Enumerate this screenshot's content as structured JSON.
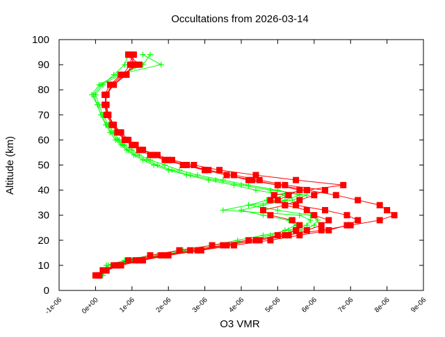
{
  "chart_data": {
    "type": "line",
    "title": "Occultations from 2026-03-14",
    "xlabel": "O3 VMR",
    "ylabel": "Altitude (km)",
    "xlim": [
      -1e-06,
      9e-06
    ],
    "ylim": [
      0,
      100
    ],
    "x_ticks": [
      "-1e-06",
      "0e+00",
      "1e-06",
      "2e-06",
      "3e-06",
      "4e-06",
      "5e-06",
      "6e-06",
      "7e-06",
      "8e-06",
      "9e-06"
    ],
    "y_ticks": [
      "0",
      "10",
      "20",
      "30",
      "40",
      "50",
      "60",
      "70",
      "80",
      "90",
      "100"
    ],
    "grid": false,
    "legend": "none",
    "colors": {
      "red_series": "#ff0000",
      "green_series": "#00ff00"
    },
    "altitudes": [
      6,
      8,
      10,
      12,
      14,
      16,
      18,
      20,
      22,
      24,
      26,
      28,
      30,
      32,
      34,
      36,
      38,
      40,
      42,
      44,
      46,
      48,
      50,
      52,
      54,
      56,
      58,
      60,
      63,
      66,
      70,
      74,
      78,
      82,
      86,
      90,
      94
    ],
    "series": [
      {
        "color": "#00ff00",
        "marker": "plus",
        "vmr": [
          2e-07,
          2.5e-07,
          3e-07,
          9e-07,
          1.7e-06,
          2.6e-06,
          3.5e-06,
          4.2e-06,
          4.8e-06,
          5.2e-06,
          5.5e-06,
          5.3e-06,
          4.6e-06,
          4e-06,
          4.6e-06,
          5.2e-06,
          5.6e-06,
          5e-06,
          4.2e-06,
          3.5e-06,
          2.8e-06,
          2.3e-06,
          1.9e-06,
          1.5e-06,
          1.2e-06,
          1e-06,
          8e-07,
          6.5e-07,
          5e-07,
          3.5e-07,
          2e-07,
          1e-07,
          0,
          2e-07,
          5e-07,
          8e-07,
          9e-07
        ]
      },
      {
        "color": "#00ff00",
        "marker": "plus",
        "vmr": [
          2e-07,
          2.5e-07,
          3e-07,
          8e-07,
          1.5e-06,
          2.4e-06,
          3.2e-06,
          3.9e-06,
          4.6e-06,
          5.3e-06,
          5.8e-06,
          5.9e-06,
          5.6e-06,
          3.5e-06,
          4.2e-06,
          5.4e-06,
          5.8e-06,
          4.8e-06,
          4e-06,
          3.3e-06,
          2.6e-06,
          2.1e-06,
          1.7e-06,
          1.4e-06,
          1.1e-06,
          9e-07,
          7.5e-07,
          6e-07,
          4.5e-07,
          3e-07,
          1.5e-07,
          5e-08,
          -1e-07,
          1e-07,
          6e-07,
          1.8e-06,
          1.3e-06
        ]
      },
      {
        "color": "#00ff00",
        "marker": "plus",
        "vmr": [
          2e-07,
          2.5e-07,
          3.5e-07,
          1e-06,
          1.9e-06,
          2.8e-06,
          3.6e-06,
          4.4e-06,
          5e-06,
          5.6e-06,
          6e-06,
          6.1e-06,
          5.9e-06,
          5e-06,
          4.2e-06,
          4.7e-06,
          5.2e-06,
          4.4e-06,
          3.8e-06,
          3.1e-06,
          2.5e-06,
          2e-06,
          1.6e-06,
          1.3e-06,
          1.05e-06,
          8.5e-07,
          7e-07,
          5.5e-07,
          4e-07,
          2.8e-07,
          1.5e-07,
          5e-08,
          -5e-08,
          1.5e-07,
          7e-07,
          1.3e-06,
          1.5e-06
        ]
      },
      {
        "color": "#ff0000",
        "marker": "square",
        "vmr": [
          1e-07,
          2e-07,
          5e-07,
          9e-07,
          1.5e-06,
          2.3e-06,
          3.2e-06,
          4.2e-06,
          5.2e-06,
          6.2e-06,
          7e-06,
          7.8e-06,
          8.2e-06,
          8e-06,
          7.8e-06,
          7.2e-06,
          6.6e-06,
          5.8e-06,
          5e-06,
          4.2e-06,
          3.6e-06,
          3e-06,
          2.5e-06,
          2e-06,
          1.6e-06,
          1.3e-06,
          1e-06,
          8.5e-07,
          6.5e-07,
          5e-07,
          3.5e-07,
          2.8e-07,
          3e-07,
          4.5e-07,
          7.5e-07,
          9.5e-07,
          1e-06
        ]
      },
      {
        "color": "#ff0000",
        "marker": "square",
        "vmr": [
          0,
          2e-07,
          6e-07,
          1.1e-06,
          1.8e-06,
          2.6e-06,
          3.5e-06,
          4.5e-06,
          5.3e-06,
          5.8e-06,
          6.2e-06,
          6.4e-06,
          6e-06,
          5.8e-06,
          5.2e-06,
          5e-06,
          5.3e-06,
          5.6e-06,
          5e-06,
          4.3e-06,
          3.6e-06,
          3e-06,
          2.4e-06,
          1.9e-06,
          1.5e-06,
          1.2e-06,
          1e-06,
          8e-07,
          6e-07,
          4.5e-07,
          3e-07,
          2.5e-07,
          3e-07,
          5e-07,
          8e-07,
          1.1e-06,
          9e-07
        ]
      },
      {
        "color": "#ff0000",
        "marker": "square",
        "vmr": [
          5e-08,
          3e-07,
          7e-07,
          1.3e-06,
          2e-06,
          2.9e-06,
          3.8e-06,
          4.8e-06,
          5.6e-06,
          6.4e-06,
          6.9e-06,
          7.2e-06,
          6.9e-06,
          6.3e-06,
          5.5e-06,
          4.8e-06,
          4.9e-06,
          5.8e-06,
          6.8e-06,
          5.5e-06,
          4.4e-06,
          3.4e-06,
          2.7e-06,
          2.1e-06,
          1.7e-06,
          1.3e-06,
          1.1e-06,
          9e-07,
          7e-07,
          5e-07,
          3.5e-07,
          3e-07,
          2.5e-07,
          4e-07,
          7e-07,
          1.2e-06,
          9e-07
        ]
      },
      {
        "color": "#ff0000",
        "marker": "square",
        "vmr": [
          1e-07,
          3e-07,
          6e-07,
          1.2e-06,
          1.9e-06,
          2.8e-06,
          3.6e-06,
          4.4e-06,
          5e-06,
          5.5e-06,
          5.6e-06,
          5.4e-06,
          4.8e-06,
          4.6e-06,
          5.2e-06,
          5.6e-06,
          6e-06,
          6.3e-06,
          5.2e-06,
          4.5e-06,
          3.8e-06,
          3.1e-06,
          2.5e-06,
          2e-06,
          1.6e-06,
          1.3e-06,
          1.05e-06,
          8.5e-07,
          6.2e-07,
          4.8e-07,
          3.3e-07,
          2.7e-07,
          2.8e-07,
          5e-07,
          8.5e-07,
          1e-06,
          1.05e-06
        ]
      }
    ]
  }
}
